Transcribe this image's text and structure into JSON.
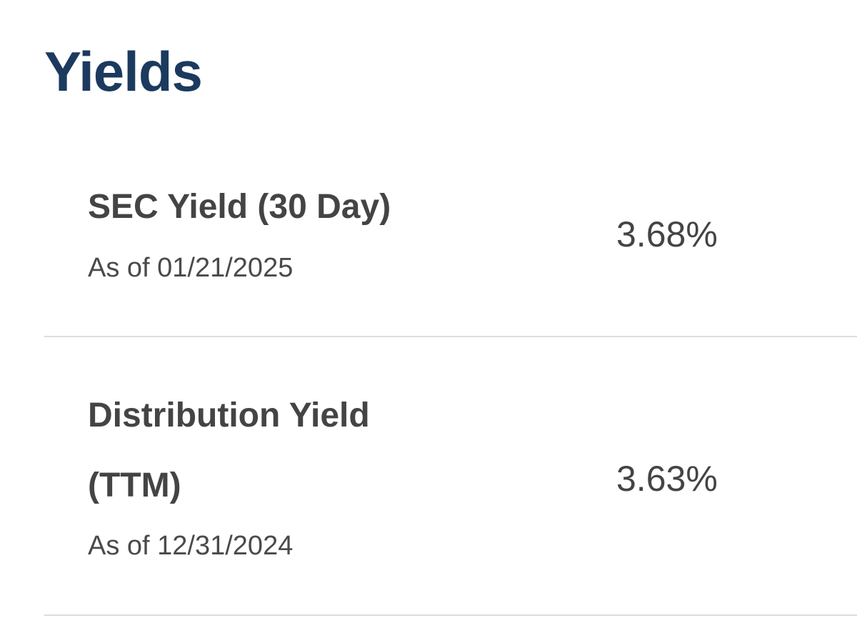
{
  "title": "Yields",
  "rows": [
    {
      "label": "SEC Yield (30 Day)",
      "as_of": "As of 01/21/2025",
      "value": "3.68%"
    },
    {
      "label": "Distribution Yield (TTM)",
      "as_of": "As of 12/31/2024",
      "value": "3.63%"
    }
  ]
}
